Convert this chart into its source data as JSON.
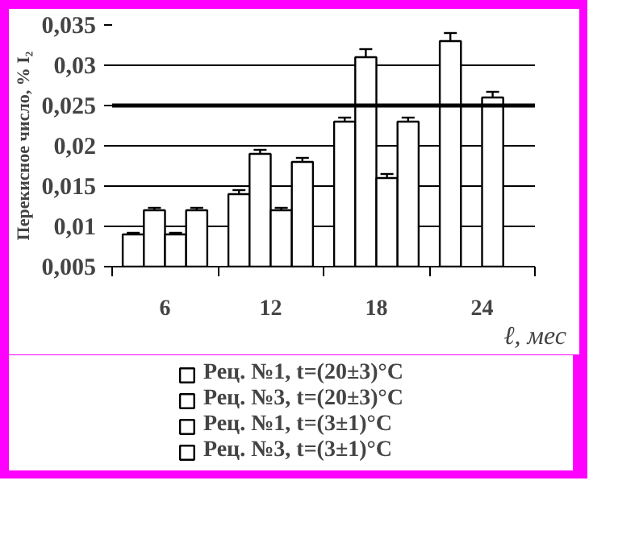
{
  "chart_data": {
    "type": "bar",
    "categories": [
      "6",
      "12",
      "18",
      "24"
    ],
    "xlabel": "ℓ, мес",
    "ylabel": "Перекисное число, % I₂",
    "ylim": [
      0.005,
      0.035
    ],
    "yticks": [
      {
        "value": 0.005,
        "label": "0,005"
      },
      {
        "value": 0.01,
        "label": "0,01"
      },
      {
        "value": 0.015,
        "label": "0,015"
      },
      {
        "value": 0.02,
        "label": "0,02"
      },
      {
        "value": 0.025,
        "label": "0,025"
      },
      {
        "value": 0.03,
        "label": "0,03"
      },
      {
        "value": 0.035,
        "label": "0,035"
      }
    ],
    "grid": "y",
    "legend": "bottom",
    "series": [
      {
        "name": "Рец. №1, t=(20±3)°C",
        "color": "#ffffff",
        "values": [
          0.009,
          0.014,
          0.023,
          0.033
        ],
        "errors": [
          0.0002,
          0.0005,
          0.0005,
          0.001
        ]
      },
      {
        "name": "Рец. №3, t=(20±3)°C",
        "color": "#ffffff",
        "values": [
          0.012,
          0.019,
          0.031,
          null
        ],
        "errors": [
          0.0003,
          0.0005,
          0.001,
          null
        ]
      },
      {
        "name": "Рец. №1, t=(3±1)°C",
        "color": "#ffffff",
        "values": [
          0.009,
          0.012,
          0.016,
          0.026
        ],
        "errors": [
          0.0002,
          0.0003,
          0.0005,
          0.0007
        ]
      },
      {
        "name": "Рец. №3, t=(3±1)°C",
        "color": "#ffffff",
        "values": [
          0.012,
          0.018,
          0.023,
          null
        ],
        "errors": [
          0.0003,
          0.0005,
          0.0005,
          null
        ]
      }
    ],
    "ref_lines": [
      {
        "axis": "y",
        "value": 0.025,
        "color": "#000000"
      }
    ]
  }
}
